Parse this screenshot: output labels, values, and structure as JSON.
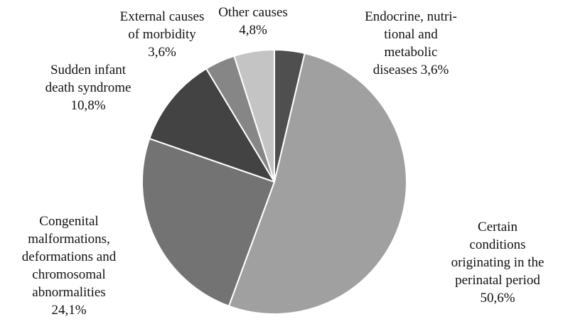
{
  "chart_data": {
    "type": "pie",
    "title": "",
    "start": "12 o'clock",
    "direction": "clockwise",
    "slice_border_color": "#ffffff",
    "legend": "none",
    "slices": [
      {
        "category": "Endocrine, nutritional and metabolic diseases",
        "value": 3.6,
        "label_lines": [
          "Endocrine, nutri-",
          "tional and",
          "metabolic",
          "diseases 3,6%"
        ],
        "color": "#4f4f4f"
      },
      {
        "category": "Certain conditions originating in the perinatal period",
        "value": 50.6,
        "label_lines": [
          "Certain",
          "conditions",
          "originating in the",
          "perinatal period",
          "50,6%"
        ],
        "color": "#a0a0a0"
      },
      {
        "category": "Congenital malformations, deformations and chromosomal abnormalities",
        "value": 24.1,
        "label_lines": [
          "Congenital",
          "malformations,",
          "deformations and",
          "chromosomal",
          "abnormalities",
          "24,1%"
        ],
        "color": "#737373"
      },
      {
        "category": "Sudden infant death syndrome",
        "value": 10.8,
        "label_lines": [
          "Sudden infant",
          "death syndrome",
          "10,8%"
        ],
        "color": "#434343"
      },
      {
        "category": "External causes of morbidity",
        "value": 3.6,
        "label_lines": [
          "External causes",
          "of morbidity",
          "3,6%"
        ],
        "color": "#868686"
      },
      {
        "category": "Other causes",
        "value": 4.8,
        "label_lines": [
          "Other causes",
          "4,8%"
        ],
        "color": "#c4c4c4"
      }
    ]
  }
}
